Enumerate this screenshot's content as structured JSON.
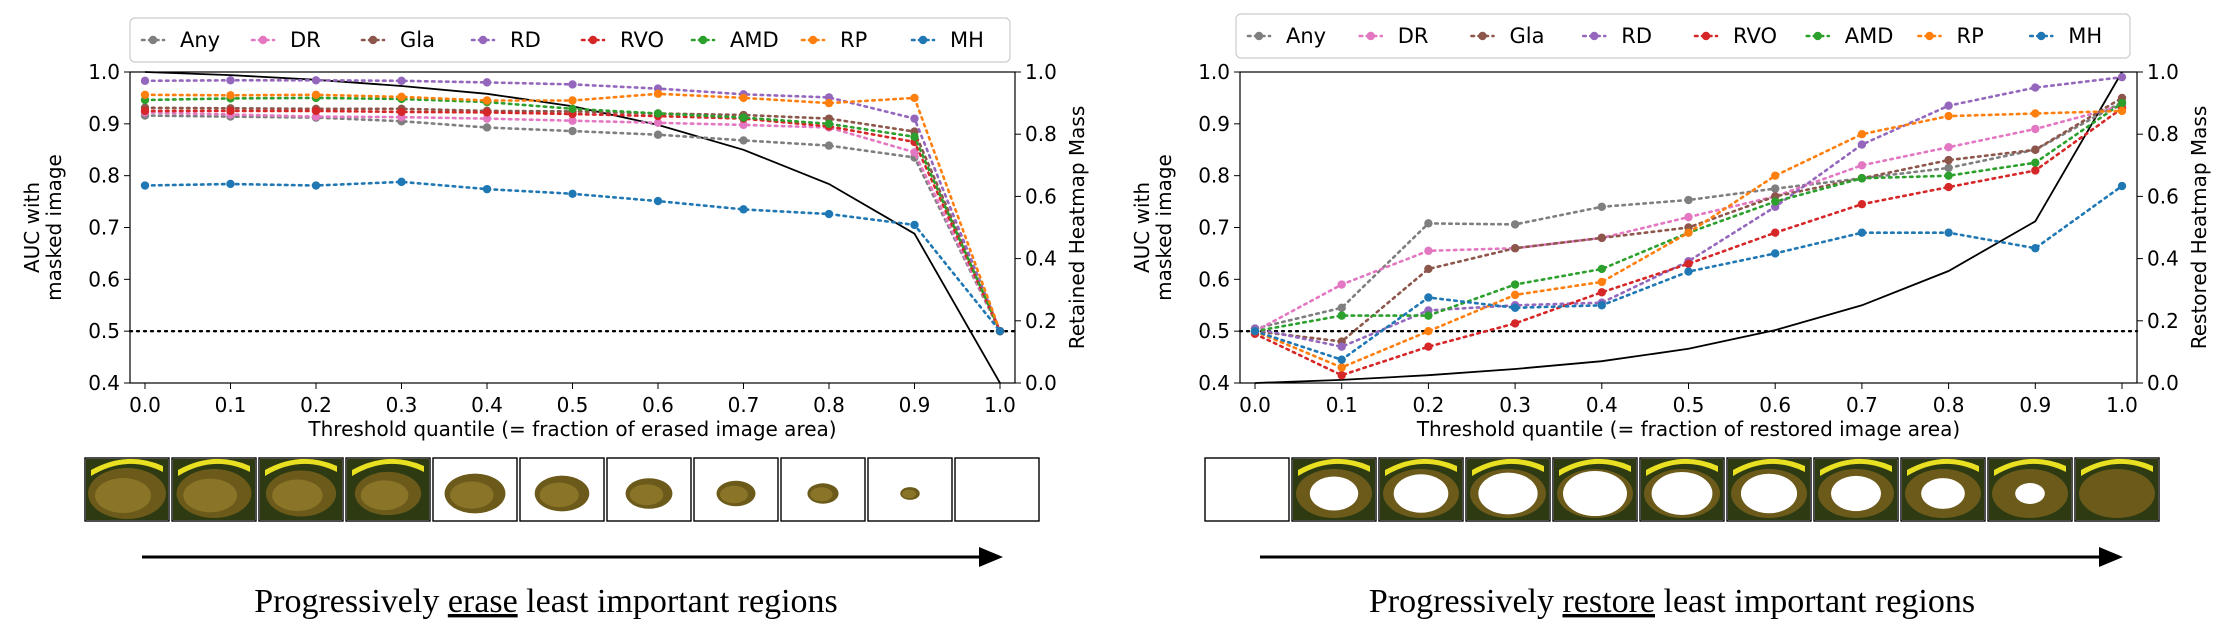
{
  "chart_data": [
    {
      "type": "line",
      "x": [
        0.0,
        0.1,
        0.2,
        0.3,
        0.4,
        0.5,
        0.6,
        0.7,
        0.8,
        0.9,
        1.0
      ],
      "xlabel": "Threshold quantile (= fraction of erased image area)",
      "ylabel_lines": [
        "AUC with",
        "masked image"
      ],
      "ylim": [
        0.4,
        1.0
      ],
      "y2label": "Retained Heatmap Mass",
      "y2lim": [
        0.0,
        1.0
      ],
      "xticks": [
        "0.0",
        "0.1",
        "0.2",
        "0.3",
        "0.4",
        "0.5",
        "0.6",
        "0.7",
        "0.8",
        "0.9",
        "1.0"
      ],
      "yticks": [
        "0.4",
        "0.5",
        "0.6",
        "0.7",
        "0.8",
        "0.9",
        "1.0"
      ],
      "y2ticks": [
        "0.0",
        "0.2",
        "0.4",
        "0.6",
        "0.8",
        "1.0"
      ],
      "series": [
        {
          "name": "Any",
          "color": "#7f7f7f",
          "values": [
            0.916,
            0.914,
            0.912,
            0.905,
            0.893,
            0.886,
            0.879,
            0.868,
            0.858,
            0.835,
            0.5
          ]
        },
        {
          "name": "DR",
          "color": "#e377c2",
          "values": [
            0.922,
            0.918,
            0.914,
            0.913,
            0.91,
            0.906,
            0.902,
            0.898,
            0.893,
            0.845,
            0.5
          ]
        },
        {
          "name": "Gla",
          "color": "#8c564b",
          "values": [
            0.931,
            0.93,
            0.929,
            0.929,
            0.925,
            0.924,
            0.92,
            0.917,
            0.91,
            0.885,
            0.5
          ]
        },
        {
          "name": "RD",
          "color": "#9467bd",
          "values": [
            0.983,
            0.984,
            0.984,
            0.983,
            0.98,
            0.976,
            0.968,
            0.957,
            0.951,
            0.91,
            0.5
          ]
        },
        {
          "name": "RVO",
          "color": "#d62728",
          "values": [
            0.925,
            0.925,
            0.925,
            0.923,
            0.922,
            0.919,
            0.915,
            0.91,
            0.895,
            0.865,
            0.5
          ]
        },
        {
          "name": "AMD",
          "color": "#2ca02c",
          "values": [
            0.946,
            0.949,
            0.95,
            0.948,
            0.942,
            0.929,
            0.92,
            0.912,
            0.9,
            0.875,
            0.5
          ]
        },
        {
          "name": "RP",
          "color": "#ff7f0e",
          "values": [
            0.956,
            0.955,
            0.956,
            0.952,
            0.945,
            0.945,
            0.958,
            0.95,
            0.94,
            0.95,
            0.5
          ]
        },
        {
          "name": "MH",
          "color": "#1f77b4",
          "values": [
            0.781,
            0.784,
            0.781,
            0.788,
            0.774,
            0.765,
            0.751,
            0.735,
            0.726,
            0.705,
            0.5
          ]
        }
      ],
      "mass_curve": {
        "name": "Retained heatmap mass",
        "color": "#000000",
        "values": [
          1.0,
          0.99,
          0.975,
          0.955,
          0.93,
          0.89,
          0.83,
          0.75,
          0.64,
          0.48,
          0.0
        ]
      },
      "reference_line": {
        "y": 0.5,
        "style": "dotted"
      },
      "thumbnail_sequence": "erase",
      "thumbnail_scales": [
        1.0,
        0.96,
        0.9,
        0.85,
        0.78,
        0.7,
        0.6,
        0.5,
        0.4,
        0.25,
        0.0
      ],
      "caption_parts": [
        "Progressively ",
        "erase",
        " least important regions"
      ]
    },
    {
      "type": "line",
      "x": [
        0.0,
        0.1,
        0.2,
        0.3,
        0.4,
        0.5,
        0.6,
        0.7,
        0.8,
        0.9,
        1.0
      ],
      "xlabel": "Threshold quantile (= fraction of restored image area)",
      "ylabel_lines": [
        "AUC with",
        "masked image"
      ],
      "ylim": [
        0.4,
        1.0
      ],
      "y2label": "Restored Heatmap Mass",
      "y2lim": [
        0.0,
        1.0
      ],
      "xticks": [
        "0.0",
        "0.1",
        "0.2",
        "0.3",
        "0.4",
        "0.5",
        "0.6",
        "0.7",
        "0.8",
        "0.9",
        "1.0"
      ],
      "yticks": [
        "0.4",
        "0.5",
        "0.6",
        "0.7",
        "0.8",
        "0.9",
        "1.0"
      ],
      "y2ticks": [
        "0.0",
        "0.2",
        "0.4",
        "0.6",
        "0.8",
        "1.0"
      ],
      "series": [
        {
          "name": "Any",
          "color": "#7f7f7f",
          "values": [
            0.505,
            0.545,
            0.708,
            0.706,
            0.74,
            0.753,
            0.775,
            0.795,
            0.815,
            0.85,
            0.942
          ]
        },
        {
          "name": "DR",
          "color": "#e377c2",
          "values": [
            0.5,
            0.59,
            0.655,
            0.66,
            0.68,
            0.72,
            0.76,
            0.82,
            0.855,
            0.89,
            0.935
          ]
        },
        {
          "name": "Gla",
          "color": "#8c564b",
          "values": [
            0.5,
            0.48,
            0.62,
            0.66,
            0.68,
            0.7,
            0.76,
            0.795,
            0.83,
            0.85,
            0.95
          ]
        },
        {
          "name": "RD",
          "color": "#9467bd",
          "values": [
            0.505,
            0.47,
            0.54,
            0.55,
            0.555,
            0.635,
            0.74,
            0.86,
            0.935,
            0.97,
            0.99
          ]
        },
        {
          "name": "RVO",
          "color": "#d62728",
          "values": [
            0.495,
            0.415,
            0.47,
            0.515,
            0.575,
            0.63,
            0.69,
            0.745,
            0.778,
            0.81,
            0.93
          ]
        },
        {
          "name": "AMD",
          "color": "#2ca02c",
          "values": [
            0.5,
            0.53,
            0.53,
            0.59,
            0.62,
            0.69,
            0.75,
            0.795,
            0.8,
            0.825,
            0.94
          ]
        },
        {
          "name": "RP",
          "color": "#ff7f0e",
          "values": [
            0.5,
            0.43,
            0.5,
            0.57,
            0.595,
            0.69,
            0.8,
            0.88,
            0.915,
            0.92,
            0.925
          ]
        },
        {
          "name": "MH",
          "color": "#1f77b4",
          "values": [
            0.5,
            0.445,
            0.565,
            0.545,
            0.55,
            0.615,
            0.65,
            0.69,
            0.69,
            0.66,
            0.78
          ]
        }
      ],
      "mass_curve": {
        "name": "Restored heatmap mass",
        "color": "#000000",
        "values": [
          0.0,
          0.01,
          0.025,
          0.045,
          0.07,
          0.11,
          0.17,
          0.25,
          0.36,
          0.52,
          1.0
        ]
      },
      "reference_line": {
        "y": 0.5,
        "style": "dotted"
      },
      "thumbnail_sequence": "restore",
      "thumbnail_scales": [
        1.0,
        0.62,
        0.7,
        0.76,
        0.82,
        0.78,
        0.72,
        0.64,
        0.56,
        0.38,
        0.0
      ],
      "caption_parts": [
        "Progressively ",
        "restore",
        " least important regions"
      ]
    }
  ]
}
